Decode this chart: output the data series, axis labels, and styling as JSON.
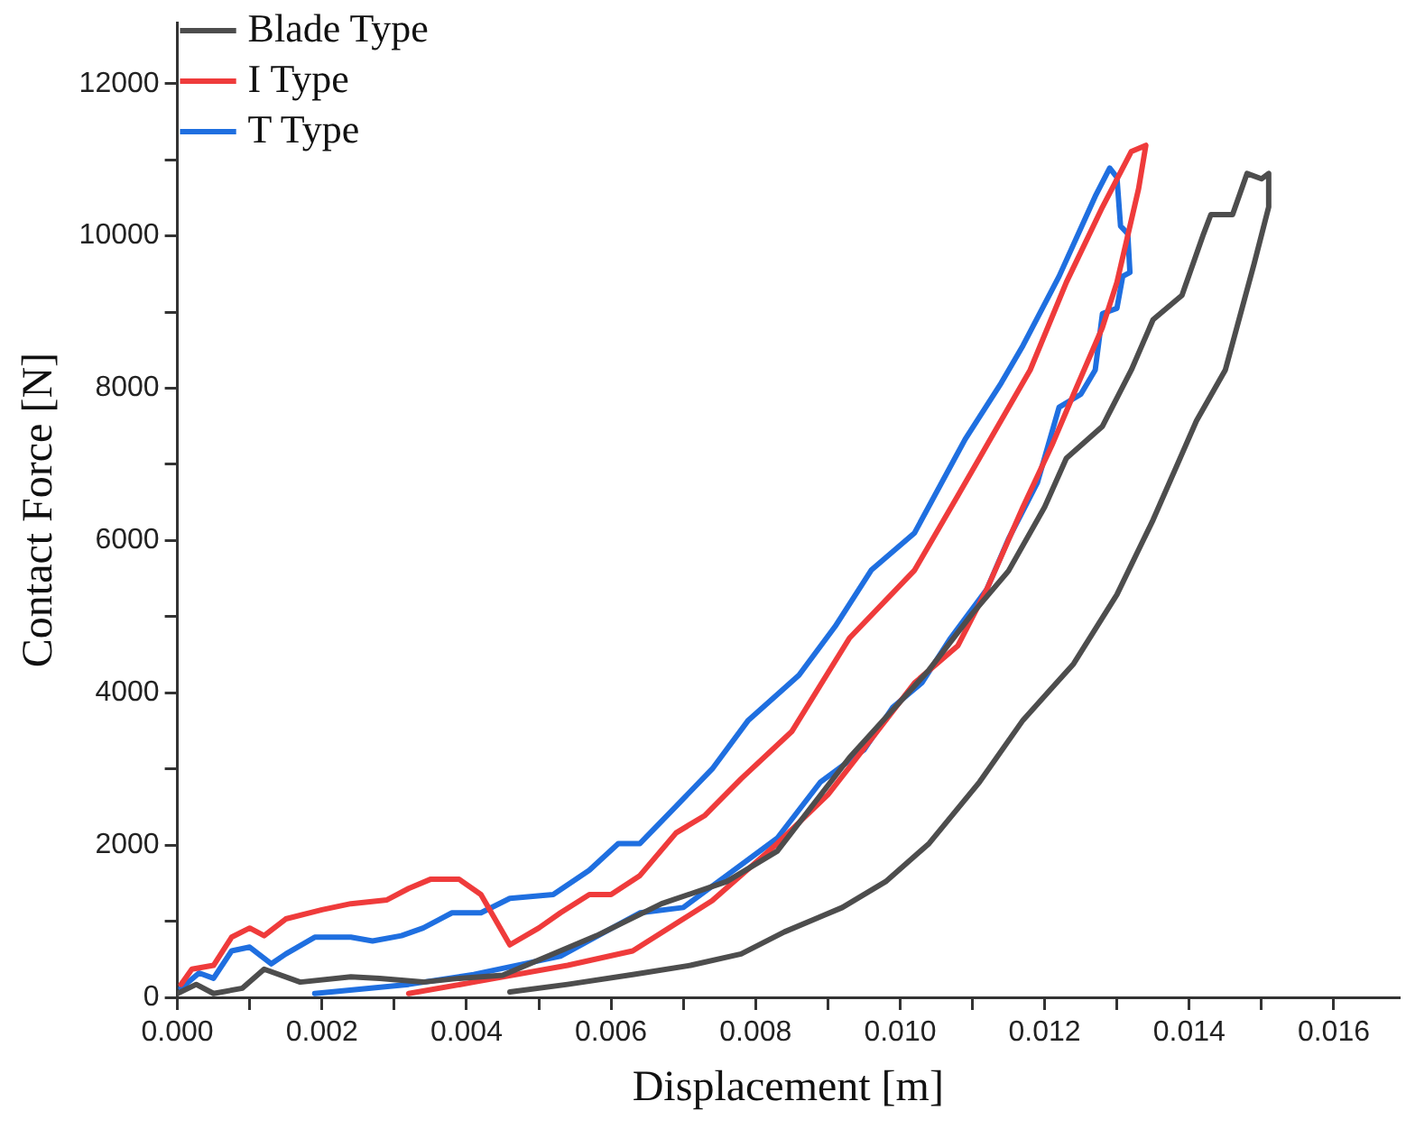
{
  "chart_data": {
    "type": "line",
    "xlabel": "Displacement [m]",
    "ylabel": "Contact Force [N]",
    "legend": "top left",
    "marker": "none",
    "line_style": "solid",
    "xlim": [
      0,
      0.0169
    ],
    "ylim": [
      0,
      12800
    ],
    "xticks": [
      {
        "value": 0,
        "label": "0.000"
      },
      {
        "value": 0.001,
        "label": null
      },
      {
        "value": 0.002,
        "label": "0.002"
      },
      {
        "value": 0.003,
        "label": null
      },
      {
        "value": 0.004,
        "label": "0.004"
      },
      {
        "value": 0.005,
        "label": null
      },
      {
        "value": 0.006,
        "label": "0.006"
      },
      {
        "value": 0.007,
        "label": null
      },
      {
        "value": 0.008,
        "label": "0.008"
      },
      {
        "value": 0.009,
        "label": null
      },
      {
        "value": 0.01,
        "label": "0.010"
      },
      {
        "value": 0.011,
        "label": null
      },
      {
        "value": 0.012,
        "label": "0.012"
      },
      {
        "value": 0.013,
        "label": null
      },
      {
        "value": 0.014,
        "label": "0.014"
      },
      {
        "value": 0.015,
        "label": null
      },
      {
        "value": 0.016,
        "label": "0.016"
      }
    ],
    "yticks": [
      0,
      {
        "value": 1000,
        "label": null
      },
      2000,
      {
        "value": 3000,
        "label": null
      },
      4000,
      {
        "value": 5000,
        "label": null
      },
      6000,
      {
        "value": 7000,
        "label": null
      },
      8000,
      {
        "value": 9000,
        "label": null
      },
      10000,
      {
        "value": 11000,
        "label": null
      },
      12000
    ],
    "series": [
      {
        "name": "Blade Type",
        "color": "#4d4d4d",
        "x": [
          0,
          0.00026,
          0.0005,
          0.0009,
          0.0012,
          0.0017,
          0.0024,
          0.0028,
          0.0034,
          0.0039,
          0.0045,
          0.0058,
          0.0067,
          0.0076,
          0.0083,
          0.0093,
          0.0104,
          0.011,
          0.0115,
          0.012,
          0.0123,
          0.0128,
          0.0132,
          0.0135,
          0.0139,
          0.0142,
          0.0143,
          0.0146,
          0.0148,
          0.015,
          0.0151,
          0.0151,
          0.0149,
          0.0145,
          0.0141,
          0.0135,
          0.013,
          0.0124,
          0.0117,
          0.0111,
          0.0104,
          0.0098,
          0.0092,
          0.0084,
          0.0078,
          0.0071,
          0.0063,
          0.0054,
          0.0046
        ],
        "values": [
          50,
          170,
          50,
          120,
          370,
          200,
          270,
          250,
          200,
          250,
          290,
          810,
          1230,
          1520,
          1920,
          3150,
          4300,
          5040,
          5600,
          6440,
          7080,
          7500,
          8240,
          8900,
          9220,
          10030,
          10280,
          10280,
          10820,
          10750,
          10820,
          10380,
          9640,
          8240,
          7570,
          6270,
          5290,
          4380,
          3640,
          2830,
          2020,
          1520,
          1180,
          860,
          570,
          420,
          300,
          170,
          70
        ]
      },
      {
        "name": "I Type",
        "color": "#ef3b3b",
        "x": [
          5e-05,
          0.0002,
          0.0005,
          0.00075,
          0.001,
          0.0012,
          0.0015,
          0.002,
          0.0024,
          0.0029,
          0.0032,
          0.0035,
          0.0039,
          0.0042,
          0.0046,
          0.005,
          0.0053,
          0.0057,
          0.006,
          0.0064,
          0.0069,
          0.0073,
          0.0078,
          0.0085,
          0.0093,
          0.0102,
          0.0108,
          0.0112,
          0.0118,
          0.0123,
          0.0128,
          0.0132,
          0.0134,
          0.0133,
          0.013,
          0.0128,
          0.0124,
          0.0121,
          0.0117,
          0.0112,
          0.0108,
          0.0102,
          0.0096,
          0.009,
          0.0083,
          0.0074,
          0.0063,
          0.0054,
          0.0041,
          0.0032
        ],
        "values": [
          170,
          370,
          420,
          790,
          910,
          810,
          1030,
          1150,
          1230,
          1280,
          1430,
          1550,
          1550,
          1350,
          690,
          910,
          1110,
          1350,
          1350,
          1600,
          2160,
          2390,
          2870,
          3490,
          4720,
          5610,
          6590,
          7250,
          8240,
          9390,
          10380,
          11110,
          11190,
          10620,
          9390,
          8800,
          7920,
          7250,
          6440,
          5360,
          4620,
          4130,
          3390,
          2660,
          2020,
          1270,
          610,
          420,
          200,
          50
        ]
      },
      {
        "name": "T Type",
        "color": "#1f6fe0",
        "x": [
          5e-05,
          0.0003,
          0.0005,
          0.00075,
          0.001,
          0.0013,
          0.0015,
          0.0019,
          0.0024,
          0.0027,
          0.0031,
          0.0034,
          0.0038,
          0.0042,
          0.0046,
          0.0052,
          0.0057,
          0.0061,
          0.0064,
          0.0069,
          0.0074,
          0.0079,
          0.0086,
          0.0091,
          0.0096,
          0.0102,
          0.0109,
          0.0114,
          0.0117,
          0.0122,
          0.0127,
          0.0129,
          0.013,
          0.01305,
          0.01315,
          0.01318,
          0.01308,
          0.013,
          0.0128,
          0.0127,
          0.0125,
          0.0122,
          0.0119,
          0.0115,
          0.0112,
          0.0107,
          0.0103,
          0.0099,
          0.0095,
          0.0089,
          0.0083,
          0.0076,
          0.007,
          0.0064,
          0.0053,
          0.0041,
          0.0032,
          0.0019
        ],
        "values": [
          120,
          320,
          250,
          610,
          660,
          440,
          570,
          790,
          790,
          740,
          810,
          910,
          1110,
          1110,
          1300,
          1350,
          1670,
          2020,
          2020,
          2510,
          3000,
          3640,
          4230,
          4870,
          5610,
          6100,
          7330,
          8070,
          8560,
          9470,
          10520,
          10890,
          10770,
          10130,
          10030,
          9520,
          9470,
          9050,
          8980,
          8240,
          7920,
          7750,
          6760,
          6020,
          5360,
          4720,
          4130,
          3810,
          3250,
          2830,
          2090,
          1600,
          1180,
          1110,
          540,
          300,
          170,
          50
        ]
      }
    ]
  }
}
